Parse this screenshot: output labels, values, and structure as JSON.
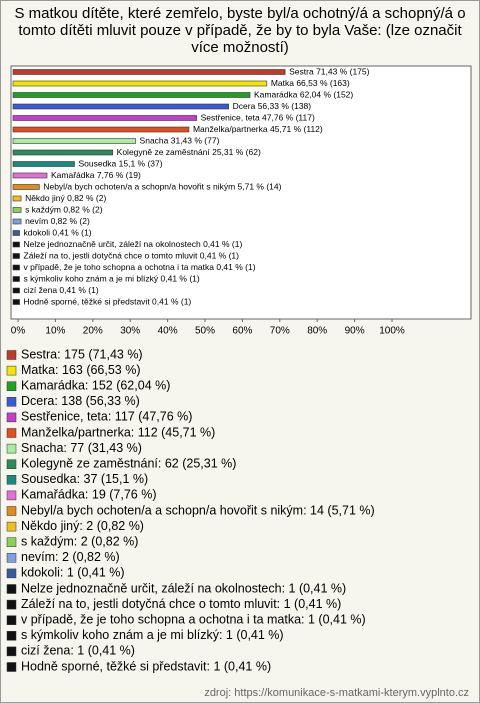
{
  "chart_data": {
    "type": "barh",
    "title": "S matkou dítěte, které zemřelo, byste byl/a ochotný/á a schopný/á o tomto dítěti mluvit pouze v případě, že by to byla Vaše: (lze označit více možností)",
    "values": [
      71.43,
      66.53,
      62.04,
      56.33,
      47.76,
      45.71,
      31.43,
      25.31,
      15.1,
      7.76,
      5.71,
      0.82,
      0.82,
      0.82,
      0.41,
      0.41,
      0.41,
      0.41,
      0.41,
      0.41,
      0.41
    ],
    "value_labels": [
      "Sestra 71,43 % (175)",
      "Matka 66,53 % (163)",
      "Kamarádka 62,04 % (152)",
      "Dcera 56,33 % (138)",
      "Sestřenice, teta 47,76 % (117)",
      "Manželka/partnerka 45,71 % (112)",
      "Snacha 31,43 % (77)",
      "Kolegyně ze zaměstnání 25,31 % (62)",
      "Sousedka 15,1 % (37)",
      "Kamařádka 7,76 % (19)",
      "Nebyl/a bych ochoten/a a schopn/a hovořit s nikým 5,71 % (14)",
      "Někdo jiný 0,82 % (2)",
      "s každým 0,82 % (2)",
      "nevím 0,82 % (2)",
      "kdokoli 0,41 % (1)",
      "Nelze jednoznačně určit, záleží na okolnostech 0,41 % (1)",
      "Záleží na to, jestli dotyčná chce o tomto mluvit 0,41 % (1)",
      "v případě, že je toho schopna a ochotna i ta matka 0,41 % (1)",
      "s kýmkoliv koho znám a je mi blízký 0,41 % (1)",
      "cizí žena 0,41 % (1)",
      "Hodně sporné, těžké si představit 0,41 % (1)"
    ],
    "legend_labels": [
      "Sestra: 175 (71,43 %)",
      "Matka: 163 (66,53 %)",
      "Kamarádka: 152 (62,04 %)",
      "Dcera: 138 (56,33 %)",
      "Sestřenice, teta: 117 (47,76 %)",
      "Manželka/partnerka: 112 (45,71 %)",
      "Snacha: 77 (31,43 %)",
      "Kolegyně ze zaměstnání: 62 (25,31 %)",
      "Sousedka: 37 (15,1 %)",
      "Kamařádka: 19 (7,76 %)",
      "Nebyl/a bych ochoten/a a schopn/a hovořit s nikým: 14 (5,71 %)",
      "Někdo jiný: 2 (0,82 %)",
      "s každým: 2 (0,82 %)",
      "nevím: 2 (0,82 %)",
      "kdokoli: 1 (0,41 %)",
      "Nelze jednoznačně určit, záleží na okolnostech: 1 (0,41 %)",
      "Záleží na to, jestli dotyčná chce o tomto mluvit: 1 (0,41 %)",
      "v případě, že je toho schopna a ochotna i ta matka: 1 (0,41 %)",
      "s kýmkoliv koho znám a je mi blízký: 1 (0,41 %)",
      "cizí žena: 1 (0,41 %)",
      "Hodně sporné, těžké si představit: 1 (0,41 %)"
    ],
    "colors": [
      "#c0392b",
      "#f2e600",
      "#22a022",
      "#3a5ad8",
      "#c040c8",
      "#e0501e",
      "#a8eca0",
      "#2e8b57",
      "#1a8a80",
      "#e070d8",
      "#e08a20",
      "#f0c020",
      "#8cd05a",
      "#7f9fe0",
      "#3a5a9a",
      "#111111",
      "#111111",
      "#111111",
      "#111111",
      "#111111",
      "#111111"
    ],
    "xlim": [
      0,
      100
    ],
    "xticks": [
      {
        "value": 0,
        "label": "0%"
      },
      {
        "value": 10,
        "label": "10%"
      },
      {
        "value": 20,
        "label": "20%"
      },
      {
        "value": 30,
        "label": "30%"
      },
      {
        "value": 40,
        "label": "40%"
      },
      {
        "value": 50,
        "label": "50%"
      },
      {
        "value": 60,
        "label": "60%"
      },
      {
        "value": 70,
        "label": "70%"
      },
      {
        "value": 80,
        "label": "80%"
      },
      {
        "value": 90,
        "label": "90%"
      },
      {
        "value": 100,
        "label": "100%"
      }
    ],
    "source": "zdroj: https://komunikace-s-matkami-kterym.vyplnto.cz"
  }
}
